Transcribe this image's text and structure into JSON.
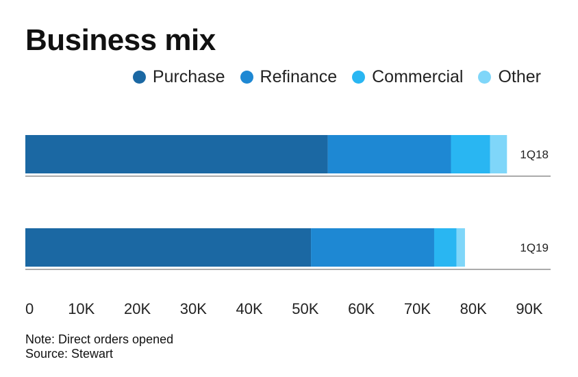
{
  "chart_data": {
    "type": "bar",
    "orientation": "horizontal",
    "stacked": true,
    "title": "Business mix",
    "categories": [
      "1Q18",
      "1Q19"
    ],
    "series": [
      {
        "name": "Purchase",
        "color": "#1b68a3",
        "values": [
          54000,
          51000
        ]
      },
      {
        "name": "Refinance",
        "color": "#1e88d3",
        "values": [
          22000,
          22000
        ]
      },
      {
        "name": "Commercial",
        "color": "#29b6f2",
        "values": [
          7000,
          4000
        ]
      },
      {
        "name": "Other",
        "color": "#7fd6f9",
        "values": [
          3000,
          1500
        ]
      }
    ],
    "xlim": [
      0,
      90000
    ],
    "xticks": [
      "0",
      "10K",
      "20K",
      "30K",
      "40K",
      "50K",
      "60K",
      "70K",
      "80K",
      "90K"
    ],
    "legend_position": "top-right",
    "grid": false
  },
  "notes": {
    "note": "Note: Direct orders opened",
    "source": "Source: Stewart"
  }
}
